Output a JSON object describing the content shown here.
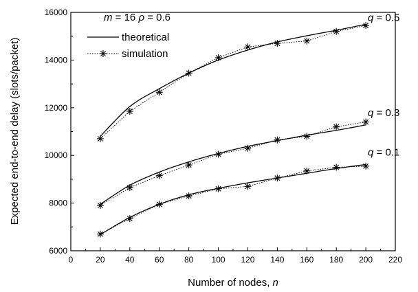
{
  "chart_data": {
    "type": "line",
    "xlabel": "Number of nodes, ",
    "xlabel_var": "n",
    "ylabel": "Expected end-to-end delay (slots/packet)",
    "xlim": [
      0,
      220
    ],
    "ylim": [
      6000,
      16000
    ],
    "xticks": [
      0,
      20,
      40,
      60,
      80,
      100,
      120,
      140,
      160,
      180,
      200,
      220
    ],
    "yticks": [
      6000,
      8000,
      10000,
      12000,
      14000,
      16000
    ],
    "params": {
      "m_var": "m",
      "m_value": " = 16 ",
      "rho_var": "ρ",
      "rho_value": " = 0.6"
    },
    "legend": {
      "placement": "top-left",
      "entries": [
        {
          "key": "theoretical",
          "label": "theoretical",
          "style": "solid"
        },
        {
          "key": "simulation",
          "label": "simulation",
          "style": "dotted-star"
        }
      ]
    },
    "x": [
      20,
      40,
      60,
      80,
      100,
      120,
      140,
      160,
      180,
      200
    ],
    "series": [
      {
        "label_var": "q",
        "label_value": " = 0.5",
        "theoretical": [
          10800,
          12050,
          12800,
          13450,
          14000,
          14420,
          14760,
          15020,
          15250,
          15500
        ],
        "simulation": [
          10700,
          11850,
          12650,
          13450,
          14100,
          14550,
          14700,
          14800,
          15200,
          15450
        ]
      },
      {
        "label_var": "q",
        "label_value": " = 0.3",
        "theoretical": [
          7950,
          8750,
          9300,
          9730,
          10080,
          10380,
          10620,
          10850,
          11050,
          11280
        ],
        "simulation": [
          7900,
          8650,
          9150,
          9600,
          10050,
          10300,
          10650,
          10800,
          11200,
          11400
        ]
      },
      {
        "label_var": "q",
        "label_value": " = 0.1",
        "theoretical": [
          6680,
          7400,
          7950,
          8350,
          8620,
          8850,
          9050,
          9250,
          9450,
          9620
        ],
        "simulation": [
          6700,
          7350,
          7950,
          8300,
          8600,
          8700,
          9050,
          9350,
          9500,
          9550
        ]
      }
    ]
  }
}
